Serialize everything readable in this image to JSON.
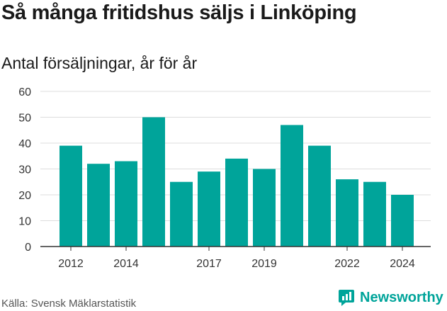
{
  "title": "Så många fritidshus säljs i Linköping",
  "subtitle": "Antal försäljningar, år för år",
  "source": "Källa: Svensk Mäklarstatistik",
  "brand": {
    "name": "Newsworthy",
    "icon": "newsworthy-logo-icon"
  },
  "colors": {
    "bar": "#00a49a",
    "grid": "#dddddd",
    "axis": "#333333",
    "brand": "#00a49a"
  },
  "chart_data": {
    "type": "bar",
    "title": "Så många fritidshus säljs i Linköping",
    "subtitle": "Antal försäljningar, år för år",
    "categories": [
      2012,
      2013,
      2014,
      2015,
      2016,
      2017,
      2018,
      2019,
      2020,
      2021,
      2022,
      2023,
      2024
    ],
    "values": [
      39,
      32,
      33,
      50,
      25,
      29,
      34,
      30,
      47,
      39,
      26,
      25,
      20
    ],
    "x_tick_labels": [
      "2012",
      "2014",
      "2017",
      "2019",
      "2022",
      "2024"
    ],
    "y_ticks": [
      0,
      10,
      20,
      30,
      40,
      50,
      60
    ],
    "ylim": [
      0,
      60
    ],
    "grid": true,
    "legend": "none"
  }
}
